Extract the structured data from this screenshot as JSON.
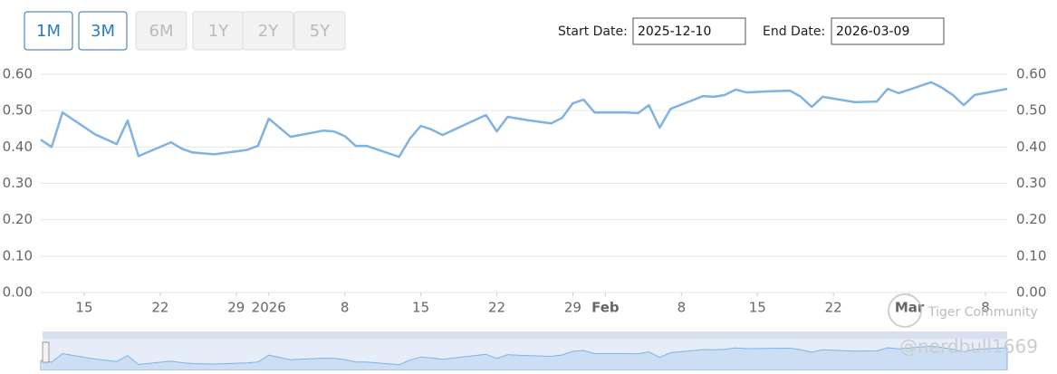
{
  "ui": {
    "range_buttons": [
      {
        "label": "1M",
        "enabled": true
      },
      {
        "label": "3M",
        "enabled": true
      },
      {
        "label": "6M",
        "enabled": false
      },
      {
        "label": "1Y",
        "enabled": false
      },
      {
        "label": "2Y",
        "enabled": false
      },
      {
        "label": "5Y",
        "enabled": false
      }
    ],
    "start_date_label": "Start Date:",
    "start_date": "2025-12-10",
    "end_date_label": "End Date:",
    "end_date": "2026-03-09",
    "watermark": {
      "brand": "Tiger Community",
      "handle": "@nerdbull1669"
    }
  },
  "chart_data": {
    "type": "line",
    "x": [
      "2025-12-11",
      "2025-12-12",
      "2025-12-13",
      "2025-12-16",
      "2025-12-18",
      "2025-12-19",
      "2025-12-20",
      "2025-12-23",
      "2025-12-24",
      "2025-12-25",
      "2025-12-27",
      "2025-12-30",
      "2025-12-31",
      "2026-01-01",
      "2026-01-03",
      "2026-01-06",
      "2026-01-07",
      "2026-01-08",
      "2026-01-09",
      "2026-01-10",
      "2026-01-13",
      "2026-01-14",
      "2026-01-15",
      "2026-01-16",
      "2026-01-17",
      "2026-01-21",
      "2026-01-22",
      "2026-01-23",
      "2026-01-25",
      "2026-01-27",
      "2026-01-28",
      "2026-01-29",
      "2026-01-30",
      "2026-01-31",
      "2026-02-03",
      "2026-02-04",
      "2026-02-05",
      "2026-02-06",
      "2026-02-07",
      "2026-02-10",
      "2026-02-11",
      "2026-02-12",
      "2026-02-13",
      "2026-02-14",
      "2026-02-16",
      "2026-02-18",
      "2026-02-19",
      "2026-02-20",
      "2026-02-21",
      "2026-02-24",
      "2026-02-26",
      "2026-02-27",
      "2026-02-28",
      "2026-03-03",
      "2026-03-04",
      "2026-03-05",
      "2026-03-06",
      "2026-03-07",
      "2026-03-10"
    ],
    "series": [
      {
        "color": "#7eb3e3",
        "values": [
          0.42,
          0.4,
          0.495,
          0.435,
          0.408,
          0.473,
          0.375,
          0.413,
          0.395,
          0.385,
          0.38,
          0.392,
          0.403,
          0.478,
          0.428,
          0.445,
          0.443,
          0.43,
          0.403,
          0.403,
          0.373,
          0.423,
          0.458,
          0.448,
          0.433,
          0.488,
          0.443,
          0.483,
          0.473,
          0.465,
          0.48,
          0.52,
          0.53,
          0.495,
          0.495,
          0.493,
          0.515,
          0.453,
          0.505,
          0.54,
          0.538,
          0.543,
          0.558,
          0.55,
          0.553,
          0.555,
          0.538,
          0.51,
          0.538,
          0.523,
          0.525,
          0.56,
          0.548,
          0.578,
          0.563,
          0.543,
          0.515,
          0.543,
          0.56
        ]
      }
    ],
    "xlim": [
      "2025-12-11",
      "2026-03-10"
    ],
    "xticks": [
      {
        "value": "2025-12-15",
        "label": "15"
      },
      {
        "value": "2025-12-22",
        "label": "22"
      },
      {
        "value": "2025-12-29",
        "label": "29"
      },
      {
        "value": "2026-01-01",
        "label": "2026"
      },
      {
        "value": "2026-01-08",
        "label": "8"
      },
      {
        "value": "2026-01-15",
        "label": "15"
      },
      {
        "value": "2026-01-22",
        "label": "22"
      },
      {
        "value": "2026-01-29",
        "label": "29"
      },
      {
        "value": "2026-02-01",
        "label": "Feb"
      },
      {
        "value": "2026-02-08",
        "label": "8"
      },
      {
        "value": "2026-02-15",
        "label": "15"
      },
      {
        "value": "2026-02-22",
        "label": "22"
      },
      {
        "value": "2026-03-01",
        "label": "Mar"
      },
      {
        "value": "2026-03-08",
        "label": "8"
      }
    ],
    "ylim": [
      0,
      0.6
    ],
    "yticks": [
      {
        "value": 0,
        "label": "0.00"
      },
      {
        "value": 0.1,
        "label": "0.10"
      },
      {
        "value": 0.2,
        "label": "0.20"
      },
      {
        "value": 0.3,
        "label": "0.30"
      },
      {
        "value": 0.4,
        "label": "0.40"
      },
      {
        "value": 0.5,
        "label": "0.50"
      },
      {
        "value": 0.6,
        "label": "0.60"
      }
    ],
    "grid": true,
    "navigator": true
  }
}
